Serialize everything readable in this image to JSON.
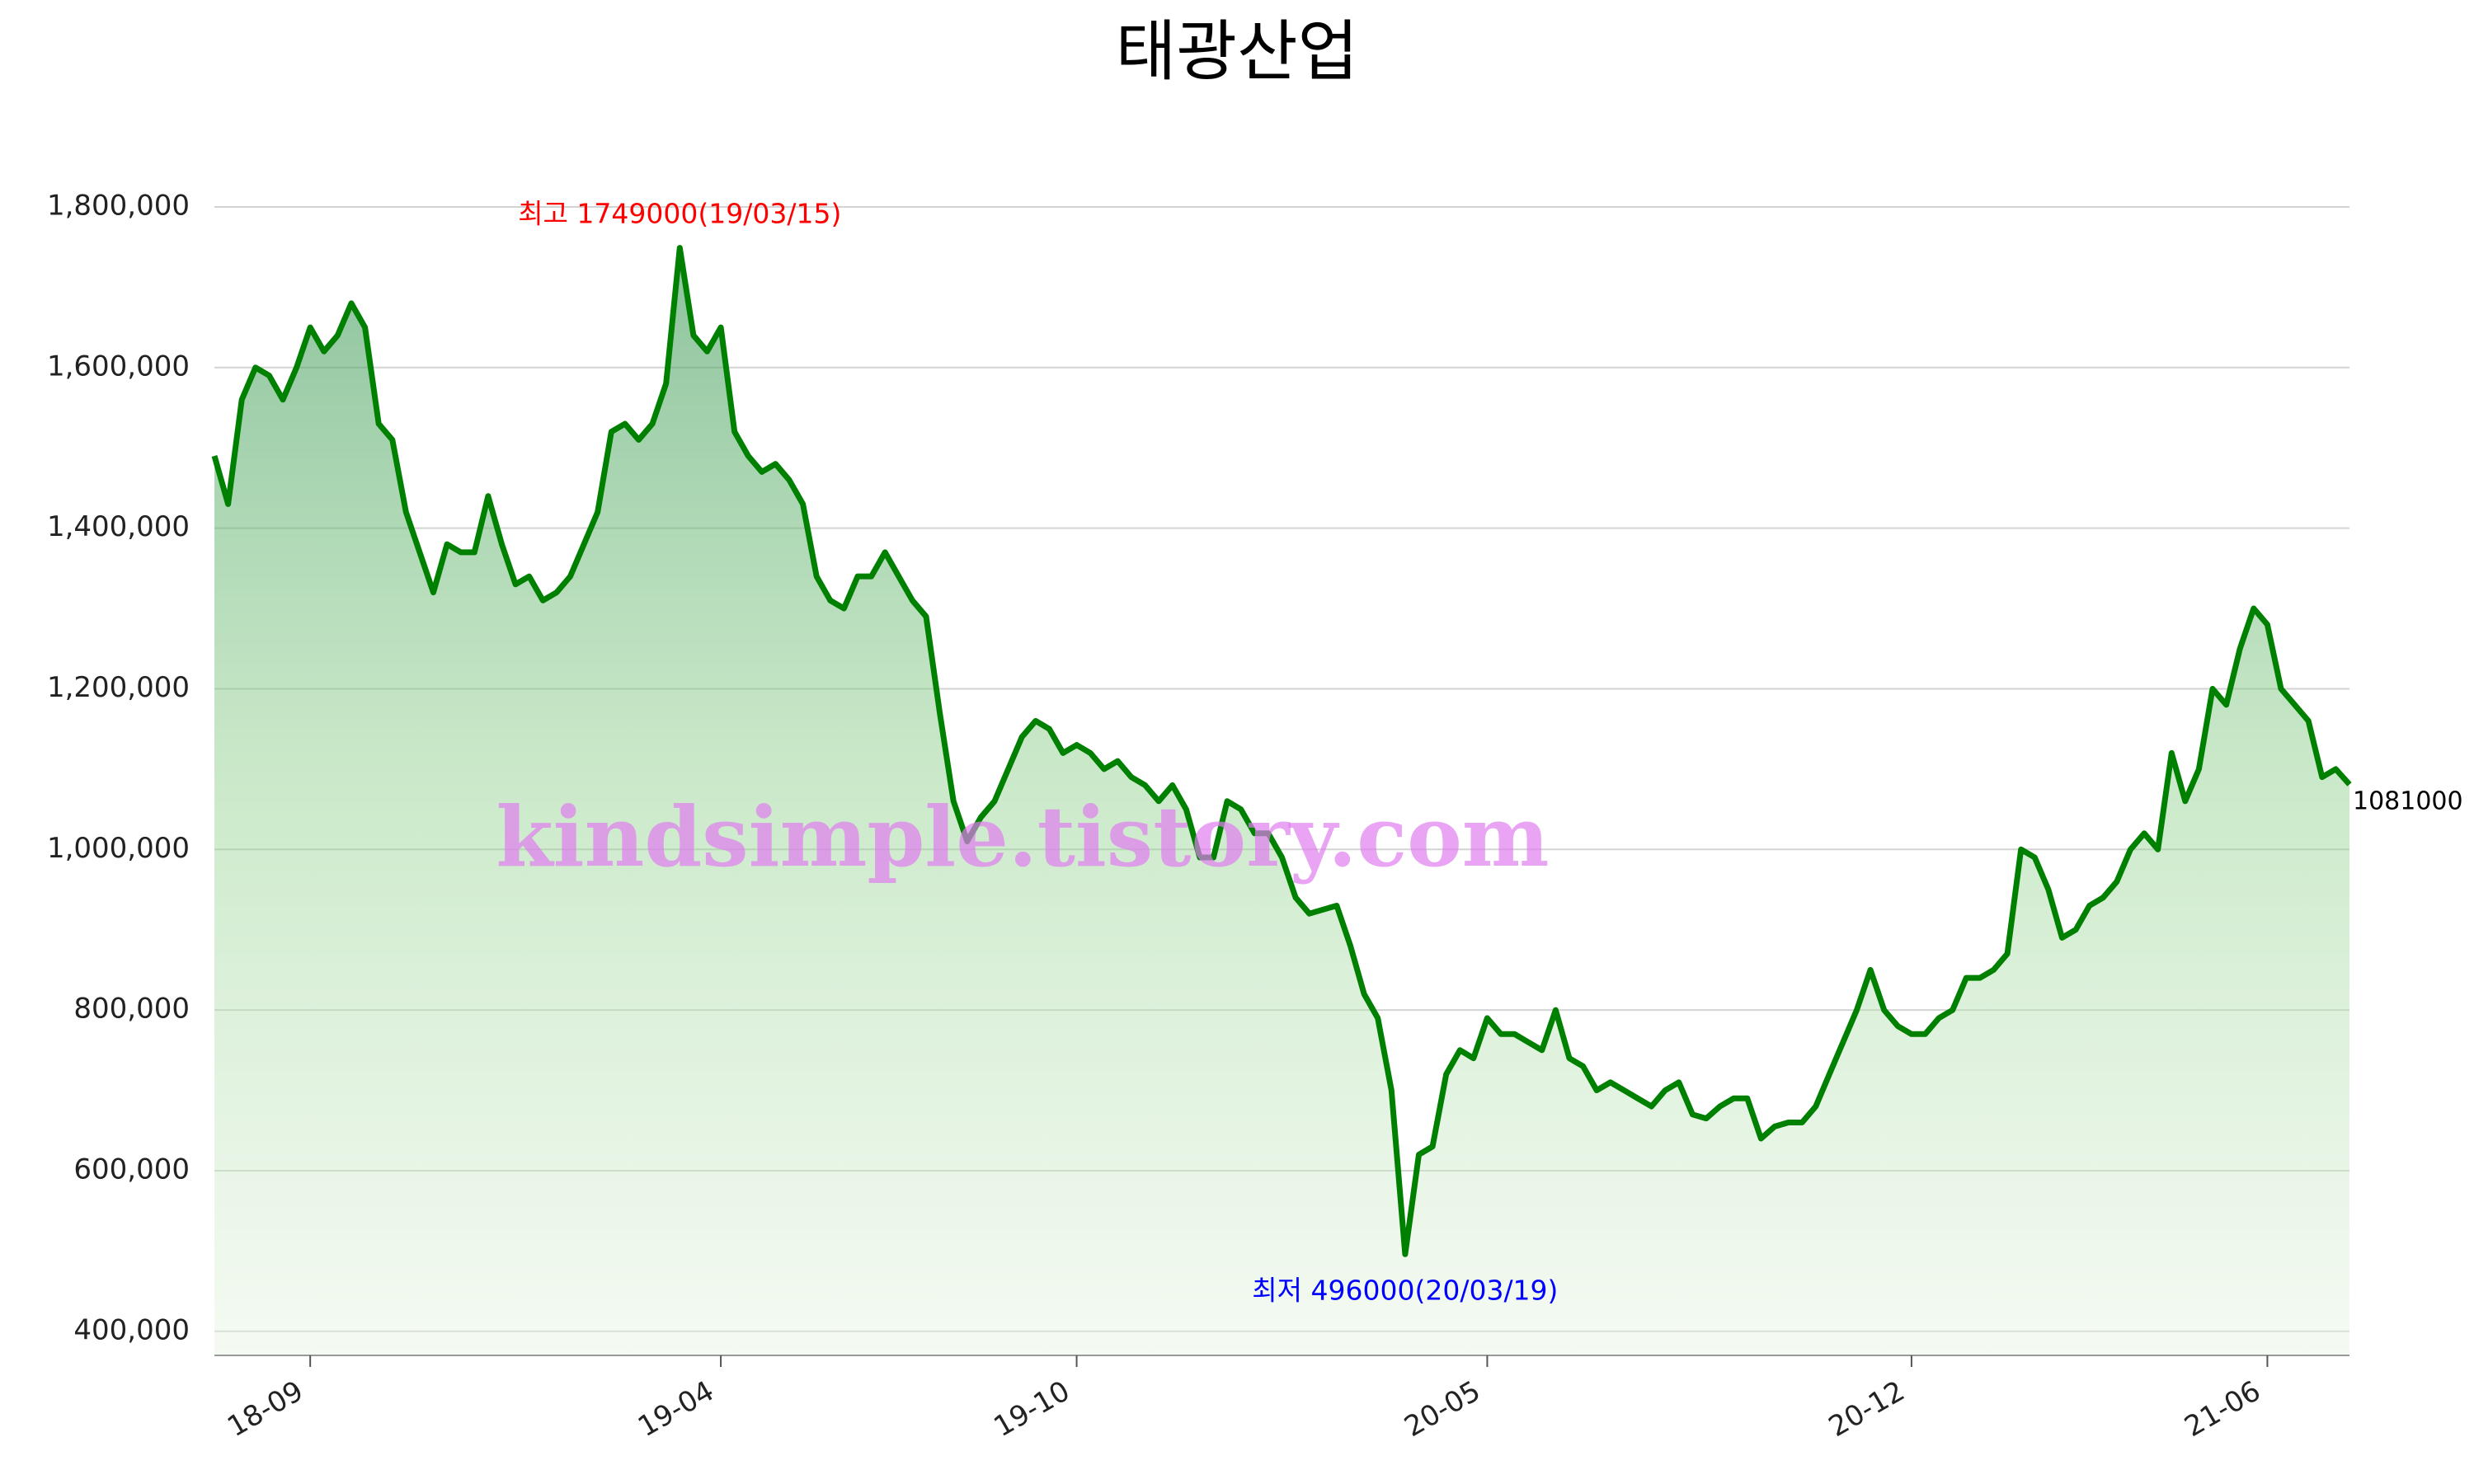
{
  "chart_data": {
    "type": "area",
    "title": "태광산업",
    "watermark": "kindsimple.tistory.com",
    "annotations": [
      {
        "text": "최고 1749000(19/03/15)",
        "color": "#ff0000"
      },
      {
        "text": "최저 496000(20/03/19)",
        "color": "#0000ff"
      },
      {
        "text": "1081000",
        "color": "#000000"
      }
    ],
    "x": [
      "18/07/20",
      "18/07/27",
      "18/08/03",
      "18/08/10",
      "18/08/17",
      "18/08/24",
      "18/08/31",
      "18/09/07",
      "18/09/14",
      "18/09/21",
      "18/09/28",
      "18/10/05",
      "18/10/12",
      "18/10/19",
      "18/10/26",
      "18/11/02",
      "18/11/09",
      "18/11/16",
      "18/11/23",
      "18/11/30",
      "18/12/07",
      "18/12/14",
      "18/12/21",
      "18/12/28",
      "19/01/04",
      "19/01/11",
      "19/01/18",
      "19/01/25",
      "19/02/01",
      "19/02/08",
      "19/02/15",
      "19/02/22",
      "19/03/01",
      "19/03/08",
      "19/03/15",
      "19/03/22",
      "19/03/29",
      "19/04/05",
      "19/04/12",
      "19/04/19",
      "19/04/26",
      "19/05/03",
      "19/05/10",
      "19/05/17",
      "19/05/24",
      "19/05/31",
      "19/06/07",
      "19/06/14",
      "19/06/21",
      "19/06/28",
      "19/07/05",
      "19/07/12",
      "19/07/19",
      "19/07/26",
      "19/08/02",
      "19/08/09",
      "19/08/16",
      "19/08/23",
      "19/08/30",
      "19/09/06",
      "19/09/13",
      "19/09/20",
      "19/09/27",
      "19/10/04",
      "19/10/11",
      "19/10/18",
      "19/10/25",
      "19/11/01",
      "19/11/08",
      "19/11/15",
      "19/11/22",
      "19/11/29",
      "19/12/06",
      "19/12/13",
      "19/12/20",
      "19/12/27",
      "20/01/03",
      "20/01/10",
      "20/01/17",
      "20/01/24",
      "20/01/31",
      "20/02/07",
      "20/02/14",
      "20/02/21",
      "20/02/28",
      "20/03/06",
      "20/03/13",
      "20/03/19",
      "20/03/27",
      "20/04/03",
      "20/04/10",
      "20/04/17",
      "20/04/24",
      "20/05/01",
      "20/05/08",
      "20/05/15",
      "20/05/22",
      "20/05/29",
      "20/06/05",
      "20/06/12",
      "20/06/19",
      "20/06/26",
      "20/07/03",
      "20/07/10",
      "20/07/17",
      "20/07/24",
      "20/07/31",
      "20/08/07",
      "20/08/14",
      "20/08/21",
      "20/08/28",
      "20/09/04",
      "20/09/11",
      "20/09/18",
      "20/09/25",
      "20/10/02",
      "20/10/09",
      "20/10/16",
      "20/10/23",
      "20/10/30",
      "20/11/06",
      "20/11/13",
      "20/11/20",
      "20/11/27",
      "20/12/04",
      "20/12/11",
      "20/12/18",
      "20/12/25",
      "21/01/01",
      "21/01/08",
      "21/01/15",
      "21/01/22",
      "21/01/29",
      "21/02/05",
      "21/02/12",
      "21/02/19",
      "21/02/26",
      "21/03/05",
      "21/03/12",
      "21/03/19",
      "21/03/26",
      "21/04/02",
      "21/04/09",
      "21/04/16",
      "21/04/23",
      "21/04/30",
      "21/05/07",
      "21/05/14",
      "21/05/21",
      "21/05/28",
      "21/06/04",
      "21/06/11",
      "21/06/18",
      "21/06/25",
      "21/07/02",
      "21/07/09",
      "21/07/16"
    ],
    "series": [
      {
        "name": "태광산업",
        "color": "#008000",
        "values": [
          1490000,
          1430000,
          1560000,
          1600000,
          1590000,
          1560000,
          1600000,
          1650000,
          1620000,
          1640000,
          1680000,
          1650000,
          1530000,
          1510000,
          1420000,
          1370000,
          1320000,
          1380000,
          1370000,
          1370000,
          1440000,
          1380000,
          1330000,
          1340000,
          1310000,
          1320000,
          1340000,
          1380000,
          1420000,
          1520000,
          1530000,
          1510000,
          1530000,
          1580000,
          1749000,
          1640000,
          1620000,
          1650000,
          1520000,
          1490000,
          1470000,
          1480000,
          1460000,
          1430000,
          1340000,
          1310000,
          1300000,
          1340000,
          1340000,
          1370000,
          1340000,
          1310000,
          1290000,
          1170000,
          1060000,
          1010000,
          1040000,
          1060000,
          1100000,
          1140000,
          1160000,
          1150000,
          1120000,
          1130000,
          1120000,
          1100000,
          1110000,
          1090000,
          1080000,
          1060000,
          1080000,
          1050000,
          990000,
          990000,
          1060000,
          1050000,
          1020000,
          1020000,
          990000,
          940000,
          920000,
          925000,
          930000,
          880000,
          820000,
          790000,
          700000,
          496000,
          620000,
          630000,
          720000,
          750000,
          740000,
          790000,
          770000,
          770000,
          760000,
          750000,
          800000,
          740000,
          730000,
          700000,
          710000,
          700000,
          690000,
          680000,
          700000,
          710000,
          670000,
          665000,
          680000,
          690000,
          690000,
          640000,
          655000,
          660000,
          660000,
          680000,
          720000,
          760000,
          800000,
          850000,
          800000,
          780000,
          770000,
          770000,
          790000,
          800000,
          840000,
          840000,
          850000,
          870000,
          1000000,
          990000,
          950000,
          890000,
          900000,
          930000,
          940000,
          960000,
          1000000,
          1020000,
          1000000,
          1120000,
          1060000,
          1100000,
          1200000,
          1180000,
          1250000,
          1300000,
          1280000,
          1200000,
          1180000,
          1160000,
          1090000,
          1100000,
          1081000
        ]
      }
    ],
    "xticks": [
      {
        "value": "18/09/07",
        "label": "18-09"
      },
      {
        "value": "19/04/05",
        "label": "19-04"
      },
      {
        "value": "19/10/04",
        "label": "19-10"
      },
      {
        "value": "20/05/01",
        "label": "20-05"
      },
      {
        "value": "20/12/04",
        "label": "20-12"
      },
      {
        "value": "21/06/04",
        "label": "21-06"
      }
    ],
    "ylim": [
      370000,
      1840000
    ],
    "yticks": [
      {
        "value": 400000,
        "label": "400,000"
      },
      {
        "value": 600000,
        "label": "600,000"
      },
      {
        "value": 800000,
        "label": "800,000"
      },
      {
        "value": 1000000,
        "label": "1,000,000"
      },
      {
        "value": 1200000,
        "label": "1,200,000"
      },
      {
        "value": 1400000,
        "label": "1,400,000"
      },
      {
        "value": 1600000,
        "label": "1,600,000"
      },
      {
        "value": 1800000,
        "label": "1,800,000"
      }
    ],
    "grid": true
  }
}
